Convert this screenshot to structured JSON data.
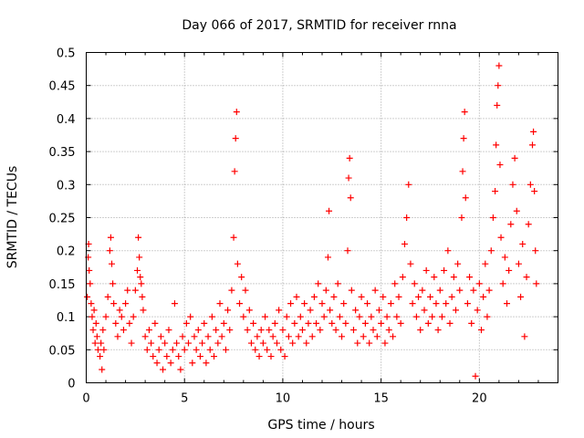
{
  "chart_data": {
    "type": "scatter",
    "title": "Day 066 of 2017, SRMTID for receiver rnna",
    "xlabel": "GPS time / hours",
    "ylabel": "SRMTID / TECUs",
    "xlim": [
      0,
      24
    ],
    "ylim": [
      0,
      0.5
    ],
    "xticks": [
      0,
      5,
      10,
      15,
      20
    ],
    "xtick_labels": [
      "0",
      "5",
      "10",
      "15",
      "20"
    ],
    "yticks": [
      0,
      0.05,
      0.1,
      0.15,
      0.2,
      0.25,
      0.3,
      0.35,
      0.4,
      0.45,
      0.5
    ],
    "ytick_labels": [
      "0",
      "0.05",
      "0.1",
      "0.15",
      "0.2",
      "0.25",
      "0.3",
      "0.35",
      "0.4",
      "0.45",
      "0.5"
    ],
    "grid": true,
    "marker": "+",
    "color": "#ff0000",
    "series": [
      {
        "name": "SRMTID",
        "points": [
          [
            0.05,
            0.13
          ],
          [
            0.1,
            0.19
          ],
          [
            0.12,
            0.21
          ],
          [
            0.15,
            0.17
          ],
          [
            0.2,
            0.15
          ],
          [
            0.25,
            0.12
          ],
          [
            0.3,
            0.1
          ],
          [
            0.35,
            0.08
          ],
          [
            0.4,
            0.11
          ],
          [
            0.45,
            0.06
          ],
          [
            0.5,
            0.09
          ],
          [
            0.55,
            0.07
          ],
          [
            0.6,
            0.05
          ],
          [
            0.7,
            0.04
          ],
          [
            0.75,
            0.06
          ],
          [
            0.8,
            0.02
          ],
          [
            0.85,
            0.08
          ],
          [
            0.9,
            0.05
          ],
          [
            1.0,
            0.1
          ],
          [
            1.1,
            0.13
          ],
          [
            1.2,
            0.2
          ],
          [
            1.25,
            0.22
          ],
          [
            1.3,
            0.18
          ],
          [
            1.35,
            0.15
          ],
          [
            1.4,
            0.12
          ],
          [
            1.5,
            0.09
          ],
          [
            1.6,
            0.07
          ],
          [
            1.7,
            0.11
          ],
          [
            1.8,
            0.1
          ],
          [
            1.9,
            0.08
          ],
          [
            2.0,
            0.12
          ],
          [
            2.1,
            0.14
          ],
          [
            2.2,
            0.09
          ],
          [
            2.3,
            0.06
          ],
          [
            2.4,
            0.1
          ],
          [
            2.5,
            0.14
          ],
          [
            2.6,
            0.17
          ],
          [
            2.65,
            0.22
          ],
          [
            2.7,
            0.19
          ],
          [
            2.75,
            0.16
          ],
          [
            2.8,
            0.15
          ],
          [
            2.85,
            0.13
          ],
          [
            2.9,
            0.11
          ],
          [
            3.0,
            0.07
          ],
          [
            3.1,
            0.05
          ],
          [
            3.2,
            0.08
          ],
          [
            3.3,
            0.06
          ],
          [
            3.4,
            0.04
          ],
          [
            3.5,
            0.09
          ],
          [
            3.6,
            0.03
          ],
          [
            3.7,
            0.05
          ],
          [
            3.8,
            0.07
          ],
          [
            3.9,
            0.02
          ],
          [
            4.0,
            0.06
          ],
          [
            4.1,
            0.04
          ],
          [
            4.2,
            0.08
          ],
          [
            4.3,
            0.03
          ],
          [
            4.4,
            0.05
          ],
          [
            4.5,
            0.12
          ],
          [
            4.6,
            0.06
          ],
          [
            4.7,
            0.04
          ],
          [
            4.8,
            0.02
          ],
          [
            4.9,
            0.07
          ],
          [
            5.0,
            0.05
          ],
          [
            5.1,
            0.09
          ],
          [
            5.2,
            0.06
          ],
          [
            5.3,
            0.1
          ],
          [
            5.4,
            0.03
          ],
          [
            5.5,
            0.07
          ],
          [
            5.6,
            0.05
          ],
          [
            5.7,
            0.08
          ],
          [
            5.8,
            0.04
          ],
          [
            5.9,
            0.06
          ],
          [
            6.0,
            0.09
          ],
          [
            6.1,
            0.03
          ],
          [
            6.2,
            0.07
          ],
          [
            6.3,
            0.05
          ],
          [
            6.4,
            0.1
          ],
          [
            6.5,
            0.04
          ],
          [
            6.6,
            0.08
          ],
          [
            6.7,
            0.06
          ],
          [
            6.8,
            0.12
          ],
          [
            6.9,
            0.07
          ],
          [
            7.0,
            0.09
          ],
          [
            7.1,
            0.05
          ],
          [
            7.2,
            0.11
          ],
          [
            7.3,
            0.08
          ],
          [
            7.4,
            0.14
          ],
          [
            7.5,
            0.22
          ],
          [
            7.55,
            0.32
          ],
          [
            7.6,
            0.37
          ],
          [
            7.65,
            0.41
          ],
          [
            7.7,
            0.18
          ],
          [
            7.8,
            0.12
          ],
          [
            7.9,
            0.16
          ],
          [
            8.0,
            0.1
          ],
          [
            8.1,
            0.14
          ],
          [
            8.2,
            0.08
          ],
          [
            8.3,
            0.11
          ],
          [
            8.4,
            0.06
          ],
          [
            8.5,
            0.09
          ],
          [
            8.6,
            0.05
          ],
          [
            8.7,
            0.07
          ],
          [
            8.8,
            0.04
          ],
          [
            8.9,
            0.08
          ],
          [
            9.0,
            0.06
          ],
          [
            9.1,
            0.1
          ],
          [
            9.2,
            0.05
          ],
          [
            9.3,
            0.08
          ],
          [
            9.4,
            0.04
          ],
          [
            9.5,
            0.07
          ],
          [
            9.6,
            0.09
          ],
          [
            9.7,
            0.06
          ],
          [
            9.8,
            0.11
          ],
          [
            9.9,
            0.05
          ],
          [
            10.0,
            0.08
          ],
          [
            10.1,
            0.04
          ],
          [
            10.2,
            0.1
          ],
          [
            10.3,
            0.07
          ],
          [
            10.4,
            0.12
          ],
          [
            10.5,
            0.06
          ],
          [
            10.6,
            0.09
          ],
          [
            10.7,
            0.13
          ],
          [
            10.8,
            0.07
          ],
          [
            10.9,
            0.1
          ],
          [
            11.0,
            0.08
          ],
          [
            11.1,
            0.12
          ],
          [
            11.2,
            0.06
          ],
          [
            11.3,
            0.09
          ],
          [
            11.4,
            0.11
          ],
          [
            11.5,
            0.07
          ],
          [
            11.6,
            0.13
          ],
          [
            11.7,
            0.09
          ],
          [
            11.8,
            0.15
          ],
          [
            11.9,
            0.08
          ],
          [
            12.0,
            0.12
          ],
          [
            12.1,
            0.1
          ],
          [
            12.2,
            0.14
          ],
          [
            12.3,
            0.19
          ],
          [
            12.35,
            0.26
          ],
          [
            12.4,
            0.11
          ],
          [
            12.5,
            0.09
          ],
          [
            12.6,
            0.13
          ],
          [
            12.7,
            0.08
          ],
          [
            12.8,
            0.15
          ],
          [
            12.9,
            0.1
          ],
          [
            13.0,
            0.07
          ],
          [
            13.1,
            0.12
          ],
          [
            13.2,
            0.09
          ],
          [
            13.3,
            0.2
          ],
          [
            13.35,
            0.31
          ],
          [
            13.4,
            0.34
          ],
          [
            13.45,
            0.28
          ],
          [
            13.5,
            0.14
          ],
          [
            13.6,
            0.08
          ],
          [
            13.7,
            0.11
          ],
          [
            13.8,
            0.06
          ],
          [
            13.9,
            0.1
          ],
          [
            14.0,
            0.13
          ],
          [
            14.1,
            0.07
          ],
          [
            14.2,
            0.09
          ],
          [
            14.3,
            0.12
          ],
          [
            14.4,
            0.06
          ],
          [
            14.5,
            0.1
          ],
          [
            14.6,
            0.08
          ],
          [
            14.7,
            0.14
          ],
          [
            14.8,
            0.07
          ],
          [
            14.9,
            0.11
          ],
          [
            15.0,
            0.09
          ],
          [
            15.1,
            0.13
          ],
          [
            15.2,
            0.06
          ],
          [
            15.3,
            0.1
          ],
          [
            15.4,
            0.08
          ],
          [
            15.5,
            0.12
          ],
          [
            15.6,
            0.07
          ],
          [
            15.7,
            0.15
          ],
          [
            15.8,
            0.1
          ],
          [
            15.9,
            0.13
          ],
          [
            16.0,
            0.09
          ],
          [
            16.1,
            0.16
          ],
          [
            16.2,
            0.21
          ],
          [
            16.3,
            0.25
          ],
          [
            16.4,
            0.3
          ],
          [
            16.5,
            0.18
          ],
          [
            16.6,
            0.12
          ],
          [
            16.7,
            0.15
          ],
          [
            16.8,
            0.1
          ],
          [
            16.9,
            0.13
          ],
          [
            17.0,
            0.08
          ],
          [
            17.1,
            0.14
          ],
          [
            17.2,
            0.11
          ],
          [
            17.3,
            0.17
          ],
          [
            17.4,
            0.09
          ],
          [
            17.5,
            0.13
          ],
          [
            17.6,
            0.1
          ],
          [
            17.7,
            0.16
          ],
          [
            17.8,
            0.12
          ],
          [
            17.9,
            0.08
          ],
          [
            18.0,
            0.14
          ],
          [
            18.1,
            0.1
          ],
          [
            18.2,
            0.17
          ],
          [
            18.3,
            0.12
          ],
          [
            18.4,
            0.2
          ],
          [
            18.5,
            0.09
          ],
          [
            18.6,
            0.13
          ],
          [
            18.7,
            0.16
          ],
          [
            18.8,
            0.11
          ],
          [
            18.9,
            0.18
          ],
          [
            19.0,
            0.14
          ],
          [
            19.1,
            0.25
          ],
          [
            19.15,
            0.32
          ],
          [
            19.2,
            0.37
          ],
          [
            19.25,
            0.41
          ],
          [
            19.3,
            0.28
          ],
          [
            19.4,
            0.12
          ],
          [
            19.5,
            0.16
          ],
          [
            19.6,
            0.09
          ],
          [
            19.7,
            0.14
          ],
          [
            19.8,
            0.01
          ],
          [
            19.9,
            0.11
          ],
          [
            20.0,
            0.15
          ],
          [
            20.1,
            0.08
          ],
          [
            20.2,
            0.13
          ],
          [
            20.3,
            0.18
          ],
          [
            20.4,
            0.1
          ],
          [
            20.5,
            0.14
          ],
          [
            20.6,
            0.2
          ],
          [
            20.7,
            0.25
          ],
          [
            20.8,
            0.29
          ],
          [
            20.85,
            0.36
          ],
          [
            20.9,
            0.42
          ],
          [
            20.95,
            0.45
          ],
          [
            21.0,
            0.48
          ],
          [
            21.05,
            0.33
          ],
          [
            21.1,
            0.22
          ],
          [
            21.2,
            0.15
          ],
          [
            21.3,
            0.19
          ],
          [
            21.4,
            0.12
          ],
          [
            21.5,
            0.17
          ],
          [
            21.6,
            0.24
          ],
          [
            21.7,
            0.3
          ],
          [
            21.8,
            0.34
          ],
          [
            21.9,
            0.26
          ],
          [
            22.0,
            0.18
          ],
          [
            22.1,
            0.13
          ],
          [
            22.2,
            0.21
          ],
          [
            22.3,
            0.07
          ],
          [
            22.4,
            0.16
          ],
          [
            22.5,
            0.24
          ],
          [
            22.6,
            0.3
          ],
          [
            22.7,
            0.36
          ],
          [
            22.75,
            0.38
          ],
          [
            22.8,
            0.29
          ],
          [
            22.85,
            0.2
          ],
          [
            22.9,
            0.15
          ]
        ]
      }
    ]
  }
}
